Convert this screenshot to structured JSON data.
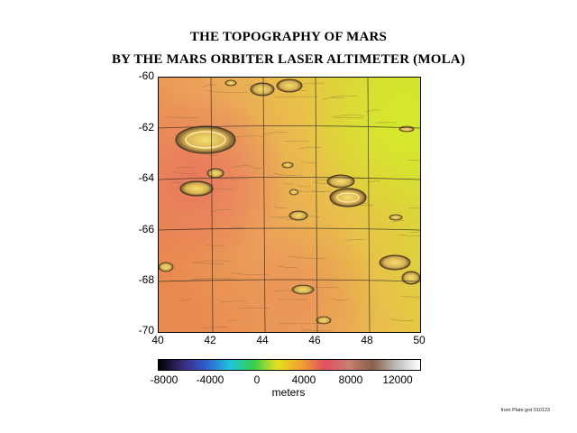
{
  "title_line1": "THE TOPOGRAPHY OF MARS",
  "title_line2": "BY THE MARS ORBITER LASER ALTIMETER (MOLA)",
  "map": {
    "y_axis_ticks": [
      "-60",
      "-62",
      "-64",
      "-66",
      "-68",
      "-70"
    ],
    "x_axis_ticks": [
      "40",
      "42",
      "44",
      "46",
      "48",
      "50"
    ],
    "lat_range": [
      -60,
      -70
    ],
    "lon_range": [
      40,
      50
    ]
  },
  "colorbar": {
    "ticks": [
      "-8000",
      "-4000",
      "0",
      "4000",
      "8000",
      "12000"
    ],
    "label": "meters",
    "colors": [
      "#000000",
      "#3a2a7a",
      "#2f5fd0",
      "#22c4e0",
      "#35d04a",
      "#e8e020",
      "#f0a030",
      "#e05060",
      "#c88070",
      "#8a6048",
      "#bcbcbc",
      "#ffffff"
    ]
  },
  "source_note": "from Plate grd 010123"
}
